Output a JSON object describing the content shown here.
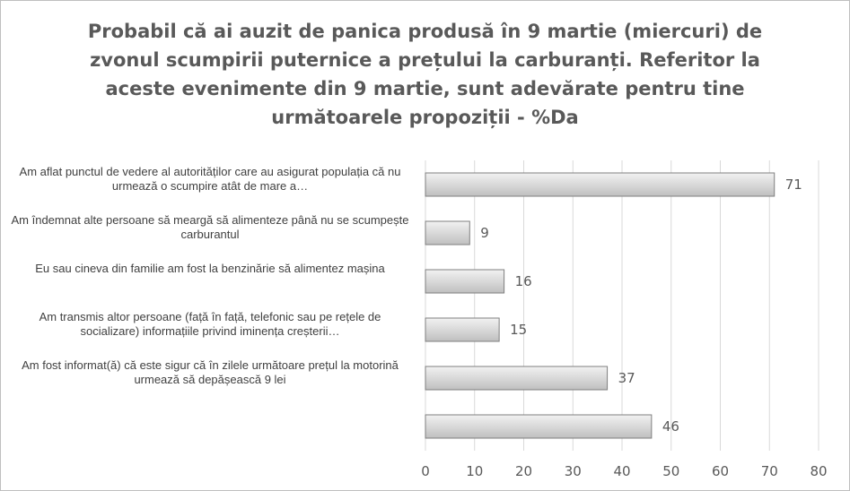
{
  "chart_data": {
    "type": "bar",
    "orientation": "horizontal",
    "title": "Probabil că ai auzit de panica produsă în 9 martie (miercuri) de zvonul scumpirii puternice a prețului la carburanți. Referitor la aceste evenimente din 9 martie, sunt adevărate pentru tine următoarele propoziții - %Da",
    "categories": [
      "Am aflat punctul de vedere al autorităților care au asigurat populația că nu urmează o scumpire atât de mare a…",
      "Am îndemnat alte persoane să meargă să alimenteze până nu se scumpește carburantul",
      "Eu sau cineva din familie am fost la benzinărie să alimentez mașina",
      "Am transmis altor persoane (față în față, telefonic sau pe rețele de socializare) informațiile privind iminența creșterii…",
      "Am fost informat(ă) că este sigur că în zilele următoare prețul la motorină urmează să depășească 9 lei",
      ""
    ],
    "values": [
      71,
      9,
      16,
      15,
      37,
      46
    ],
    "data_labels": [
      "71",
      "9",
      "16",
      "15",
      "37",
      "46"
    ],
    "xlim": [
      0,
      80
    ],
    "xticks": [
      0,
      10,
      20,
      30,
      40,
      50,
      60,
      70,
      80
    ],
    "xtick_labels": [
      "0",
      "10",
      "20",
      "30",
      "40",
      "50",
      "60",
      "70",
      "80"
    ],
    "grid": "vertical",
    "legend": "none",
    "colors": {
      "bar_fill_light": "#f2f2f2",
      "bar_fill_dark": "#bfbfbf",
      "bar_stroke": "#7f7f7f",
      "grid": "#d9d9d9",
      "text": "#595959"
    }
  }
}
